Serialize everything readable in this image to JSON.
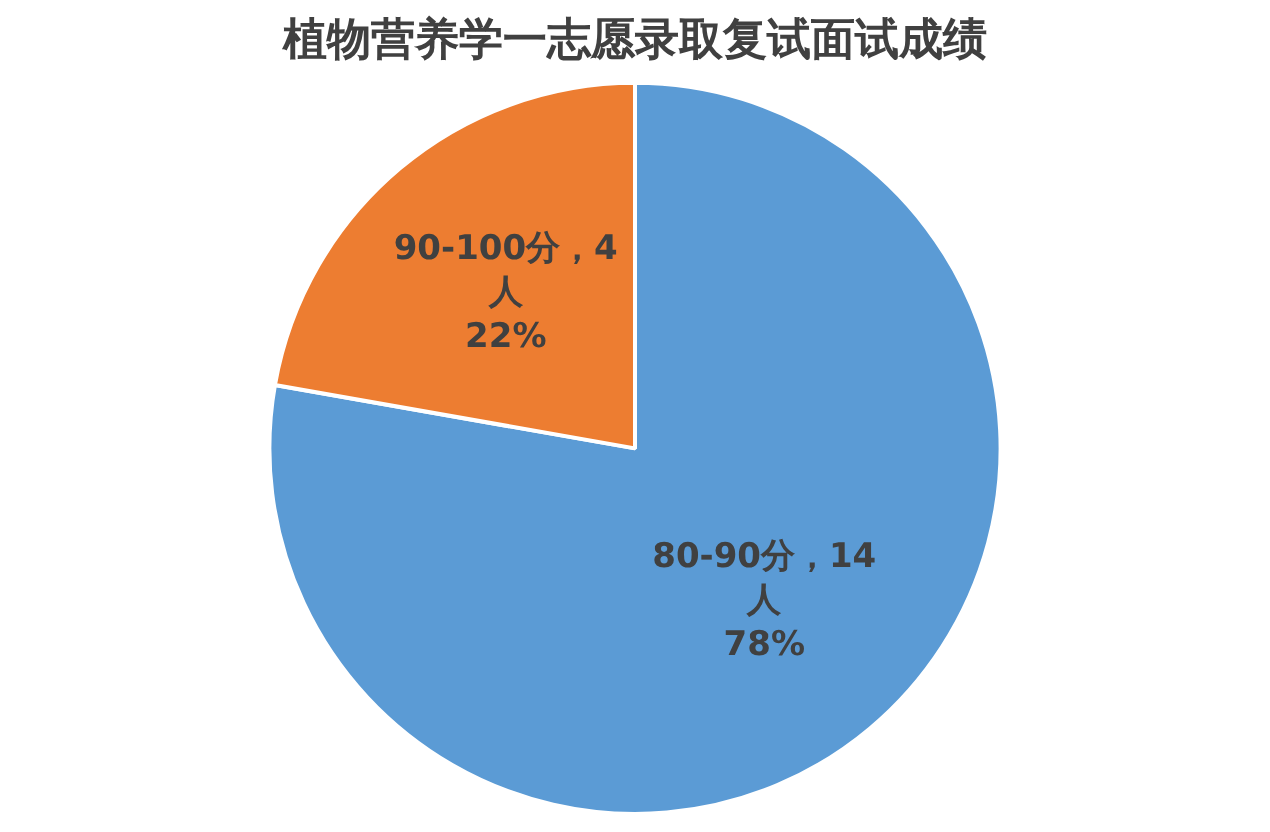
{
  "chart_data": {
    "type": "pie",
    "title": "植物营养学一志愿录取复试面试成绩",
    "categories": [
      "80-90分",
      "90-100分"
    ],
    "values": [
      14,
      4
    ],
    "value_labels": [
      "14 人 78%",
      "4 人 22%"
    ],
    "colors": [
      "#5b9bd5",
      "#ed7d31"
    ],
    "legend": false
  }
}
